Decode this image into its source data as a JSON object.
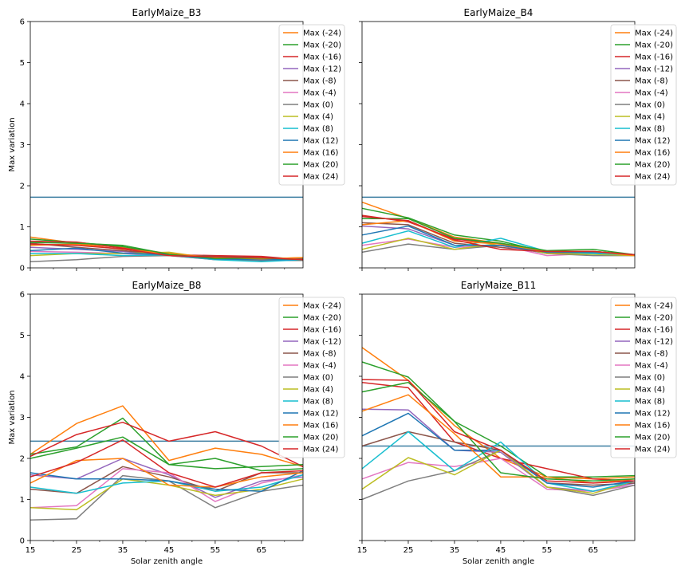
{
  "figure": {
    "ylabel": "Max variation",
    "xlabel": "Solar zenith angle",
    "xticks": [
      15,
      25,
      35,
      45,
      55,
      65
    ],
    "yticks": [
      0,
      1,
      2,
      3,
      4,
      5,
      6
    ],
    "xlim": [
      15,
      74
    ],
    "ylim": [
      0,
      6
    ],
    "threshold_color": "#3b7ea1",
    "series_names": [
      "Max (-24)",
      "Max (-20)",
      "Max (-16)",
      "Max (-12)",
      "Max (-8)",
      "Max (-4)",
      "Max (0)",
      "Max (4)",
      "Max (8)",
      "Max (12)",
      "Max (16)",
      "Max (20)",
      "Max (24)"
    ],
    "series_colors": [
      "#ff7f0e",
      "#2ca02c",
      "#d62728",
      "#9467bd",
      "#8c564b",
      "#e377c2",
      "#7f7f7f",
      "#bcbd22",
      "#17becf",
      "#1f77b4",
      "#ff7f0e",
      "#2ca02c",
      "#d62728"
    ]
  },
  "chart_data": [
    {
      "type": "line",
      "title": "EarlyMaize_B3",
      "x": [
        15,
        25,
        35,
        45,
        55,
        65,
        74
      ],
      "threshold": 1.72,
      "legend": "top-right",
      "series": [
        {
          "name": "Max (-24)",
          "values": [
            0.75,
            0.6,
            0.5,
            0.35,
            0.25,
            0.22,
            0.2
          ]
        },
        {
          "name": "Max (-20)",
          "values": [
            0.7,
            0.62,
            0.52,
            0.33,
            0.24,
            0.2,
            0.2
          ]
        },
        {
          "name": "Max (-16)",
          "values": [
            0.65,
            0.63,
            0.48,
            0.32,
            0.3,
            0.28,
            0.2
          ]
        },
        {
          "name": "Max (-12)",
          "values": [
            0.5,
            0.45,
            0.4,
            0.3,
            0.25,
            0.24,
            0.2
          ]
        },
        {
          "name": "Max (-8)",
          "values": [
            0.6,
            0.5,
            0.42,
            0.32,
            0.28,
            0.25,
            0.22
          ]
        },
        {
          "name": "Max (-4)",
          "values": [
            0.4,
            0.38,
            0.35,
            0.3,
            0.2,
            0.2,
            0.2
          ]
        },
        {
          "name": "Max (0)",
          "values": [
            0.15,
            0.2,
            0.28,
            0.3,
            0.2,
            0.18,
            0.18
          ]
        },
        {
          "name": "Max (4)",
          "values": [
            0.3,
            0.35,
            0.35,
            0.38,
            0.22,
            0.22,
            0.25
          ]
        },
        {
          "name": "Max (8)",
          "values": [
            0.35,
            0.35,
            0.3,
            0.32,
            0.2,
            0.15,
            0.2
          ]
        },
        {
          "name": "Max (12)",
          "values": [
            0.42,
            0.48,
            0.36,
            0.32,
            0.22,
            0.2,
            0.2
          ]
        },
        {
          "name": "Max (16)",
          "values": [
            0.55,
            0.58,
            0.45,
            0.35,
            0.25,
            0.22,
            0.25
          ]
        },
        {
          "name": "Max (20)",
          "values": [
            0.62,
            0.6,
            0.55,
            0.33,
            0.23,
            0.24,
            0.2
          ]
        },
        {
          "name": "Max (24)",
          "values": [
            0.58,
            0.55,
            0.46,
            0.3,
            0.27,
            0.25,
            0.2
          ]
        }
      ]
    },
    {
      "type": "line",
      "title": "EarlyMaize_B4",
      "x": [
        15,
        25,
        35,
        45,
        55,
        65,
        74
      ],
      "threshold": 1.72,
      "legend": "top-right",
      "series": [
        {
          "name": "Max (-24)",
          "values": [
            1.6,
            1.2,
            0.75,
            0.6,
            0.4,
            0.35,
            0.3
          ]
        },
        {
          "name": "Max (-20)",
          "values": [
            1.45,
            1.22,
            0.8,
            0.65,
            0.38,
            0.4,
            0.32
          ]
        },
        {
          "name": "Max (-16)",
          "values": [
            1.28,
            1.12,
            0.7,
            0.58,
            0.4,
            0.4,
            0.32
          ]
        },
        {
          "name": "Max (-12)",
          "values": [
            1.02,
            0.95,
            0.55,
            0.55,
            0.35,
            0.35,
            0.3
          ]
        },
        {
          "name": "Max (-8)",
          "values": [
            1.1,
            1.05,
            0.6,
            0.5,
            0.38,
            0.35,
            0.3
          ]
        },
        {
          "name": "Max (-4)",
          "values": [
            0.55,
            0.7,
            0.5,
            0.55,
            0.3,
            0.35,
            0.3
          ]
        },
        {
          "name": "Max (0)",
          "values": [
            0.38,
            0.58,
            0.45,
            0.55,
            0.35,
            0.3,
            0.3
          ]
        },
        {
          "name": "Max (4)",
          "values": [
            0.45,
            0.72,
            0.45,
            0.6,
            0.35,
            0.33,
            0.3
          ]
        },
        {
          "name": "Max (8)",
          "values": [
            0.6,
            0.9,
            0.5,
            0.72,
            0.4,
            0.35,
            0.32
          ]
        },
        {
          "name": "Max (12)",
          "values": [
            0.8,
            1.02,
            0.55,
            0.55,
            0.38,
            0.38,
            0.32
          ]
        },
        {
          "name": "Max (16)",
          "values": [
            1.05,
            1.15,
            0.65,
            0.58,
            0.4,
            0.4,
            0.3
          ]
        },
        {
          "name": "Max (20)",
          "values": [
            1.2,
            1.2,
            0.72,
            0.6,
            0.42,
            0.45,
            0.32
          ]
        },
        {
          "name": "Max (24)",
          "values": [
            1.25,
            1.15,
            0.68,
            0.45,
            0.4,
            0.4,
            0.32
          ]
        }
      ]
    },
    {
      "type": "line",
      "title": "EarlyMaize_B8",
      "x": [
        15,
        25,
        35,
        45,
        55,
        65,
        74
      ],
      "threshold": 2.42,
      "legend": "top-right",
      "series": [
        {
          "name": "Max (-24)",
          "values": [
            2.1,
            2.85,
            3.28,
            1.95,
            2.25,
            2.1,
            1.8
          ]
        },
        {
          "name": "Max (-20)",
          "values": [
            2.1,
            2.28,
            2.98,
            1.85,
            2.0,
            1.7,
            1.75
          ]
        },
        {
          "name": "Max (-16)",
          "values": [
            2.05,
            2.58,
            2.88,
            2.42,
            2.65,
            2.3,
            1.8
          ]
        },
        {
          "name": "Max (-12)",
          "values": [
            1.6,
            1.5,
            2.0,
            1.6,
            1.05,
            1.45,
            1.55
          ]
        },
        {
          "name": "Max (-8)",
          "values": [
            1.25,
            1.15,
            1.8,
            1.55,
            1.2,
            1.65,
            1.65
          ]
        },
        {
          "name": "Max (-4)",
          "values": [
            0.8,
            0.85,
            1.75,
            1.65,
            0.95,
            1.4,
            1.6
          ]
        },
        {
          "name": "Max (0)",
          "values": [
            0.5,
            0.53,
            1.58,
            1.45,
            0.8,
            1.2,
            1.35
          ]
        },
        {
          "name": "Max (4)",
          "values": [
            0.8,
            0.75,
            1.5,
            1.35,
            1.1,
            1.25,
            1.5
          ]
        },
        {
          "name": "Max (8)",
          "values": [
            1.3,
            1.15,
            1.4,
            1.45,
            1.2,
            1.3,
            1.6
          ]
        },
        {
          "name": "Max (12)",
          "values": [
            1.65,
            1.5,
            1.5,
            1.45,
            1.25,
            1.2,
            1.7
          ]
        },
        {
          "name": "Max (16)",
          "values": [
            1.4,
            1.95,
            2.0,
            1.35,
            1.3,
            1.55,
            1.65
          ]
        },
        {
          "name": "Max (20)",
          "values": [
            2.0,
            2.25,
            2.52,
            1.85,
            1.75,
            1.8,
            1.85
          ]
        },
        {
          "name": "Max (24)",
          "values": [
            1.55,
            1.9,
            2.45,
            1.65,
            1.3,
            1.65,
            1.7
          ]
        }
      ]
    },
    {
      "type": "line",
      "title": "EarlyMaize_B11",
      "x": [
        15,
        25,
        35,
        45,
        55,
        65,
        74
      ],
      "threshold": 2.3,
      "legend": "top-right",
      "series": [
        {
          "name": "Max (-24)",
          "values": [
            4.7,
            3.9,
            2.8,
            2.0,
            1.55,
            1.5,
            1.55
          ]
        },
        {
          "name": "Max (-20)",
          "values": [
            4.35,
            3.98,
            2.9,
            2.3,
            1.55,
            1.55,
            1.58
          ]
        },
        {
          "name": "Max (-16)",
          "values": [
            3.85,
            3.72,
            2.4,
            2.0,
            1.75,
            1.5,
            1.45
          ]
        },
        {
          "name": "Max (-12)",
          "values": [
            3.2,
            3.18,
            2.2,
            2.15,
            1.3,
            1.2,
            1.4
          ]
        },
        {
          "name": "Max (-8)",
          "values": [
            2.3,
            2.65,
            2.4,
            2.2,
            1.4,
            1.35,
            1.4
          ]
        },
        {
          "name": "Max (-4)",
          "values": [
            1.5,
            1.9,
            1.8,
            2.0,
            1.25,
            1.2,
            1.35
          ]
        },
        {
          "name": "Max (0)",
          "values": [
            1.0,
            1.45,
            1.7,
            2.2,
            1.3,
            1.1,
            1.35
          ]
        },
        {
          "name": "Max (4)",
          "values": [
            1.25,
            2.02,
            1.6,
            2.2,
            1.3,
            1.15,
            1.45
          ]
        },
        {
          "name": "Max (8)",
          "values": [
            1.75,
            2.65,
            1.7,
            2.4,
            1.4,
            1.2,
            1.45
          ]
        },
        {
          "name": "Max (12)",
          "values": [
            2.55,
            3.1,
            2.2,
            2.2,
            1.4,
            1.3,
            1.45
          ]
        },
        {
          "name": "Max (16)",
          "values": [
            3.15,
            3.55,
            2.6,
            1.55,
            1.55,
            1.4,
            1.5
          ]
        },
        {
          "name": "Max (20)",
          "values": [
            3.62,
            3.85,
            2.9,
            1.65,
            1.5,
            1.45,
            1.5
          ]
        },
        {
          "name": "Max (24)",
          "values": [
            3.92,
            3.9,
            2.65,
            2.2,
            1.45,
            1.4,
            1.45
          ]
        }
      ]
    }
  ]
}
